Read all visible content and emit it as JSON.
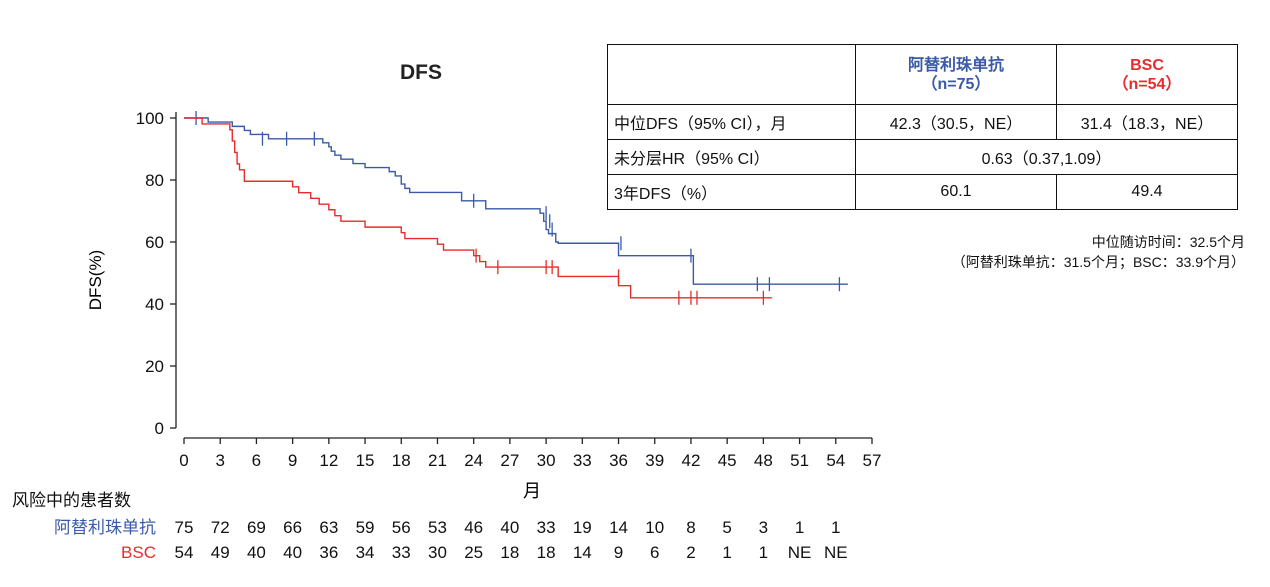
{
  "chart_data": {
    "type": "line",
    "title": "DFS",
    "xlabel": "月",
    "ylabel": "DFS(%)",
    "xlim": [
      0,
      57
    ],
    "ylim": [
      0,
      100
    ],
    "x_ticks": [
      0,
      3,
      6,
      9,
      12,
      15,
      18,
      21,
      24,
      27,
      30,
      33,
      36,
      39,
      42,
      45,
      48,
      51,
      54,
      57
    ],
    "y_ticks": [
      0,
      20,
      40,
      60,
      80,
      100
    ],
    "series": [
      {
        "name": "阿替利珠单抗",
        "color": "#3a5aa8",
        "steps": [
          [
            0,
            100
          ],
          [
            2,
            98.7
          ],
          [
            4,
            97.3
          ],
          [
            5,
            96
          ],
          [
            5.5,
            94.7
          ],
          [
            7,
            93.3
          ],
          [
            11.5,
            92
          ],
          [
            12,
            90.7
          ],
          [
            12.2,
            89.3
          ],
          [
            12.5,
            88
          ],
          [
            13,
            86.7
          ],
          [
            14,
            85.3
          ],
          [
            15,
            84
          ],
          [
            17,
            82.7
          ],
          [
            17.5,
            81.3
          ],
          [
            18,
            78.7
          ],
          [
            18.3,
            77.3
          ],
          [
            18.7,
            76
          ],
          [
            23,
            73.3
          ],
          [
            25,
            70.7
          ],
          [
            29.5,
            69.3
          ],
          [
            29.8,
            66.7
          ],
          [
            30,
            64
          ],
          [
            30.2,
            62.7
          ],
          [
            30.8,
            60
          ],
          [
            31,
            59.6
          ],
          [
            36,
            55.6
          ],
          [
            42.2,
            46.4
          ],
          [
            55,
            46.4
          ]
        ],
        "censored": [
          [
            1,
            100
          ],
          [
            6.5,
            93.3
          ],
          [
            8.5,
            93.3
          ],
          [
            10.8,
            93.3
          ],
          [
            24,
            73.3
          ],
          [
            30,
            69.3
          ],
          [
            30.3,
            66.7
          ],
          [
            30.5,
            64
          ],
          [
            36.2,
            59.6
          ],
          [
            42,
            55.6
          ],
          [
            47.5,
            46.4
          ],
          [
            48.5,
            46.4
          ],
          [
            54.3,
            46.4
          ]
        ]
      },
      {
        "name": "BSC",
        "color": "#e62c2c",
        "steps": [
          [
            0,
            100
          ],
          [
            1.5,
            98.1
          ],
          [
            3.8,
            96.2
          ],
          [
            4,
            92.6
          ],
          [
            4.2,
            88.9
          ],
          [
            4.4,
            85.2
          ],
          [
            4.6,
            83.3
          ],
          [
            5,
            79.6
          ],
          [
            9,
            77.8
          ],
          [
            9.5,
            75.9
          ],
          [
            10.5,
            74.1
          ],
          [
            11.2,
            72.2
          ],
          [
            12,
            70.4
          ],
          [
            12.5,
            68.5
          ],
          [
            13,
            66.7
          ],
          [
            15,
            64.8
          ],
          [
            18,
            63
          ],
          [
            18.3,
            61.1
          ],
          [
            21,
            59.3
          ],
          [
            21.5,
            57.4
          ],
          [
            24,
            55.6
          ],
          [
            24.5,
            53.7
          ],
          [
            25,
            51.9
          ],
          [
            31,
            48.9
          ],
          [
            36,
            45.9
          ],
          [
            37,
            42
          ],
          [
            48.7,
            42
          ]
        ],
        "censored": [
          [
            24.2,
            55.6
          ],
          [
            26,
            51.9
          ],
          [
            30,
            51.9
          ],
          [
            30.5,
            51.9
          ],
          [
            36,
            48.9
          ],
          [
            41,
            42
          ],
          [
            42,
            42
          ],
          [
            42.5,
            42
          ],
          [
            48,
            42
          ]
        ]
      }
    ],
    "risk_table": {
      "title": "风险中的患者数",
      "groups": [
        {
          "label": "阿替利珠单抗",
          "color": "#3a5aa8",
          "counts": [
            "75",
            "72",
            "69",
            "66",
            "63",
            "59",
            "56",
            "53",
            "46",
            "40",
            "33",
            "19",
            "14",
            "10",
            "8",
            "5",
            "3",
            "1",
            "1"
          ]
        },
        {
          "label": "BSC",
          "color": "#e62c2c",
          "counts": [
            "54",
            "49",
            "40",
            "40",
            "36",
            "34",
            "33",
            "30",
            "25",
            "18",
            "18",
            "14",
            "9",
            "6",
            "2",
            "1",
            "1",
            "NE",
            "NE"
          ]
        }
      ]
    }
  },
  "table": {
    "header": {
      "col1_name": "阿替利珠单抗",
      "col1_n": "（n=75）",
      "col2_name": "BSC",
      "col2_n": "（n=54）"
    },
    "rows": [
      {
        "label": "中位DFS（95% CI），月",
        "col1": "42.3（30.5，NE）",
        "col2": "31.4（18.3，NE）"
      },
      {
        "label": "未分层HR（95% CI）",
        "merged": "0.63（0.37,1.09）"
      },
      {
        "label": "3年DFS（%）",
        "col1": "60.1",
        "col2": "49.4"
      }
    ]
  },
  "followup": {
    "line1": "中位随访时间：32.5个月",
    "line2": "（阿替利珠单抗：31.5个月；BSC：33.9个月）"
  }
}
